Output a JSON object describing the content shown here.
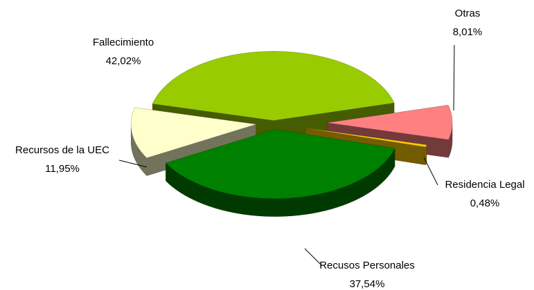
{
  "chart_data": {
    "type": "pie",
    "categories": [
      "Fallecimiento",
      "Otras",
      "Residencia Legal",
      "Recusos Personales",
      "Recursos de la UEC"
    ],
    "values": [
      42.02,
      8.01,
      0.48,
      37.54,
      11.95
    ],
    "value_labels": [
      "42,02%",
      "8,01%",
      "0,48%",
      "37,54%",
      "11,95%"
    ],
    "colors": [
      "#99cc00",
      "#ff8080",
      "#ffcc00",
      "#008000",
      "#ffffcc"
    ]
  }
}
